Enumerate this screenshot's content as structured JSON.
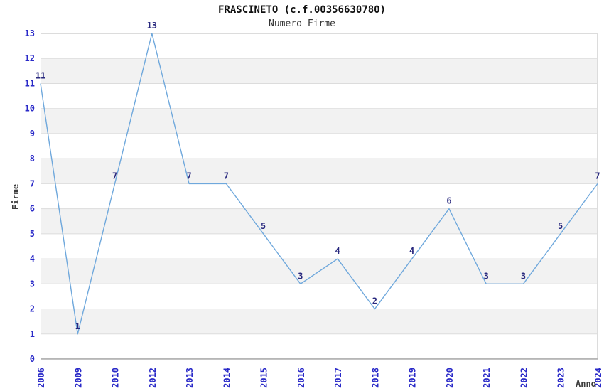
{
  "title": "FRASCINETO (c.f.00356630780)",
  "subtitle": "Numero Firme",
  "chart_data": {
    "type": "line",
    "title": "FRASCINETO (c.f.00356630780)",
    "subtitle": "Numero Firme",
    "xlabel": "Anno",
    "ylabel": "Firme",
    "categories": [
      "2006",
      "2009",
      "2010",
      "2012",
      "2013",
      "2014",
      "2015",
      "2016",
      "2017",
      "2018",
      "2019",
      "2020",
      "2021",
      "2022",
      "2023",
      "2024"
    ],
    "values": [
      11,
      1,
      7,
      13,
      7,
      7,
      5,
      3,
      4,
      2,
      4,
      6,
      3,
      3,
      5,
      7
    ],
    "ylim": [
      0,
      13
    ],
    "y_ticks": [
      0,
      1,
      2,
      3,
      4,
      5,
      6,
      7,
      8,
      9,
      10,
      11,
      12,
      13
    ],
    "grid": "alternating-horizontal-bands",
    "data_labels": true,
    "legend": "none",
    "colors": {
      "line": "#6fa8dc",
      "data_label": "#28287e",
      "tick_label": "#2a2ac8",
      "axis_label": "#3c3c3c",
      "band_gray": "#f2f2f2",
      "band_white": "#ffffff",
      "gridline": "#dcdcdc",
      "axis_line": "#9e9e9e",
      "title_color": "#111111"
    }
  }
}
